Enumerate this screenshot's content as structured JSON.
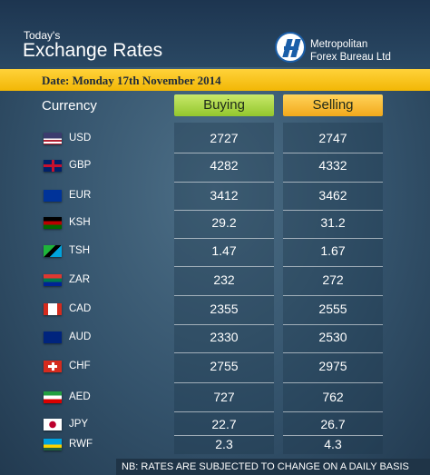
{
  "header": {
    "kicker": "Today's",
    "title": "Exchange Rates",
    "logo_line1": "Metropolitan",
    "logo_line2": "Forex Bureau Ltd"
  },
  "date": "Date: Monday 17th  November 2014",
  "table": {
    "headers": [
      "Currency",
      "Buying",
      "Selling"
    ],
    "rows": [
      [
        "USD",
        "2727",
        "2747"
      ],
      [
        "GBP",
        "4282",
        "4332"
      ],
      [
        "EUR",
        "3412",
        "3462"
      ],
      [
        "KSH",
        "29.2",
        "31.2"
      ],
      [
        "TSH",
        "1.47",
        "1.67"
      ],
      [
        "ZAR",
        "232",
        "272"
      ],
      [
        "CAD",
        "2355",
        "2555"
      ],
      [
        "AUD",
        "2330",
        "2530"
      ],
      [
        "CHF",
        "2755",
        "2975"
      ],
      [
        "AED",
        "727",
        "762"
      ],
      [
        "JPY",
        "22.7",
        "26.7"
      ],
      [
        "RWF",
        "2.3",
        "4.3"
      ]
    ]
  },
  "footnote": "NB: RATES ARE SUBJECTED TO CHANGE ON A DAILY BASIS"
}
